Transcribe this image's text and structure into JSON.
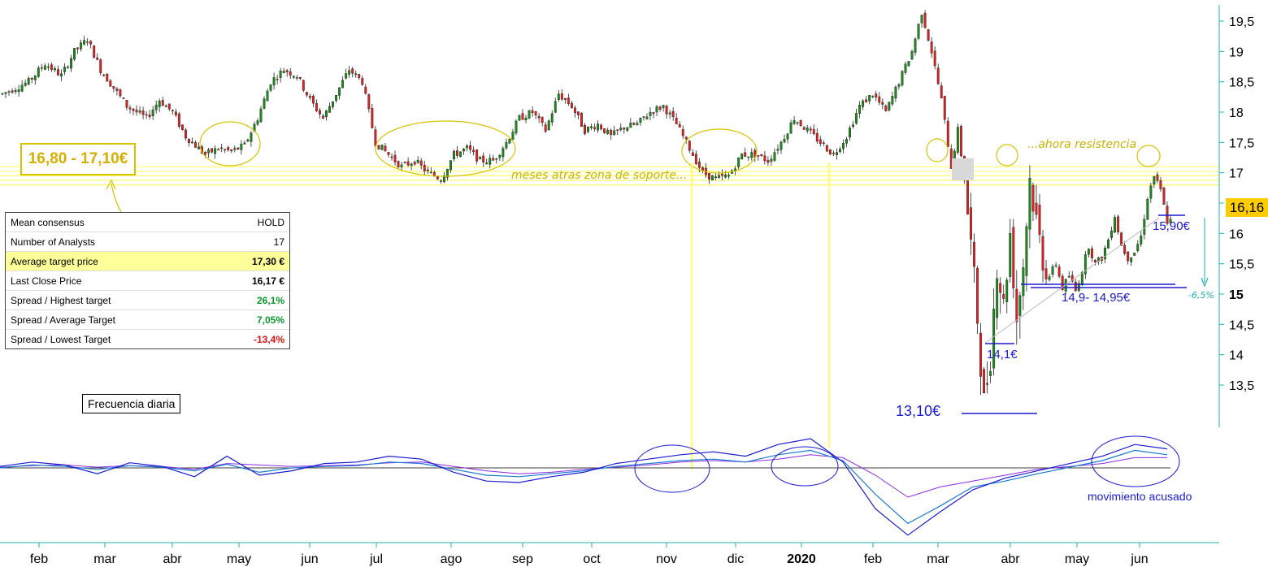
{
  "chart_data": {
    "type": "candlestick",
    "y_ticks": [
      "19,5",
      "19",
      "18,5",
      "18",
      "17,5",
      "17",
      "16,5",
      "16",
      "15,5",
      "15",
      "14,5",
      "14",
      "13,5"
    ],
    "y_tick_values": [
      19.5,
      19,
      18.5,
      18,
      17.5,
      17,
      16.5,
      16,
      15.5,
      15,
      14.5,
      14,
      13.5
    ],
    "y_bold_tick": "15",
    "ylim": [
      12.9,
      19.75
    ],
    "months": [
      "feb",
      "mar",
      "abr",
      "may",
      "jun",
      "jul",
      "ago",
      "sep",
      "oct",
      "nov",
      "dic",
      "2020",
      "feb",
      "mar",
      "abr",
      "may",
      "jun"
    ],
    "current_price": "16,16",
    "current_price_value": 16.16,
    "support_zone": [
      16.8,
      17.1
    ],
    "price_path": [
      [
        0,
        18.3
      ],
      [
        8,
        18.5
      ],
      [
        13,
        18.8
      ],
      [
        18,
        18.6
      ],
      [
        22,
        19.0
      ],
      [
        26,
        19.2
      ],
      [
        30,
        18.7
      ],
      [
        38,
        18.1
      ],
      [
        44,
        17.9
      ],
      [
        48,
        18.2
      ],
      [
        52,
        18.0
      ],
      [
        56,
        17.6
      ],
      [
        62,
        17.3
      ],
      [
        66,
        17.4
      ],
      [
        70,
        17.35
      ],
      [
        74,
        17.45
      ],
      [
        78,
        17.9
      ],
      [
        82,
        18.5
      ],
      [
        86,
        18.7
      ],
      [
        90,
        18.6
      ],
      [
        94,
        18.2
      ],
      [
        98,
        17.9
      ],
      [
        102,
        18.3
      ],
      [
        106,
        18.7
      ],
      [
        110,
        18.5
      ],
      [
        114,
        17.5
      ],
      [
        118,
        17.3
      ],
      [
        122,
        17.1
      ],
      [
        126,
        17.2
      ],
      [
        130,
        17.0
      ],
      [
        134,
        16.9
      ],
      [
        138,
        17.3
      ],
      [
        142,
        17.4
      ],
      [
        146,
        17.2
      ],
      [
        150,
        17.2
      ],
      [
        154,
        17.5
      ],
      [
        158,
        17.9
      ],
      [
        162,
        18.0
      ],
      [
        166,
        17.7
      ],
      [
        170,
        18.3
      ],
      [
        174,
        18.1
      ],
      [
        178,
        17.7
      ],
      [
        182,
        17.8
      ],
      [
        186,
        17.6
      ],
      [
        190,
        17.75
      ],
      [
        194,
        17.8
      ],
      [
        198,
        18.0
      ],
      [
        202,
        18.1
      ],
      [
        206,
        17.8
      ],
      [
        210,
        17.4
      ],
      [
        214,
        17.0
      ],
      [
        218,
        16.9
      ],
      [
        222,
        16.95
      ],
      [
        226,
        17.3
      ],
      [
        230,
        17.3
      ],
      [
        234,
        17.2
      ],
      [
        238,
        17.5
      ],
      [
        242,
        17.9
      ],
      [
        246,
        17.7
      ],
      [
        250,
        17.5
      ],
      [
        254,
        17.3
      ],
      [
        258,
        17.6
      ],
      [
        262,
        18.1
      ],
      [
        266,
        18.3
      ],
      [
        270,
        18.0
      ],
      [
        274,
        18.5
      ],
      [
        278,
        19.0
      ],
      [
        281,
        19.65
      ],
      [
        284,
        19.0
      ],
      [
        287,
        18.2
      ],
      [
        290,
        17.1
      ],
      [
        292,
        17.7
      ],
      [
        294,
        16.9
      ],
      [
        296,
        15.8
      ],
      [
        298,
        14.6
      ],
      [
        300,
        13.2
      ],
      [
        302,
        14.0
      ],
      [
        304,
        15.5
      ],
      [
        306,
        14.8
      ],
      [
        308,
        16.0
      ],
      [
        310,
        14.6
      ],
      [
        312,
        15.5
      ],
      [
        314,
        16.9
      ],
      [
        316,
        16.2
      ],
      [
        318,
        15.6
      ],
      [
        320,
        15.3
      ],
      [
        322,
        15.5
      ],
      [
        324,
        15.1
      ],
      [
        326,
        15.3
      ],
      [
        328,
        15.05
      ],
      [
        330,
        15.4
      ],
      [
        332,
        15.8
      ],
      [
        334,
        15.5
      ],
      [
        336,
        15.6
      ],
      [
        338,
        15.9
      ],
      [
        340,
        16.3
      ],
      [
        342,
        15.8
      ],
      [
        344,
        15.6
      ],
      [
        346,
        15.7
      ],
      [
        348,
        15.95
      ],
      [
        350,
        16.6
      ],
      [
        352,
        16.95
      ],
      [
        354,
        16.7
      ],
      [
        356,
        16.2
      ]
    ],
    "osc_long": [
      0,
      0.2,
      0.1,
      -0.1,
      0.15,
      0.05,
      -0.2,
      0.25,
      -0.3,
      0,
      0.1,
      0.15,
      0.4,
      0.3,
      -0.1,
      -0.5,
      -0.6,
      -0.4,
      -0.2,
      0.1,
      0.3,
      0.5,
      0.6,
      0.4,
      0.9,
      1.2,
      0.5,
      -1.8,
      -3.8,
      -2.6,
      -1.3,
      -0.9,
      -0.4,
      0.05,
      0.5,
      1.2,
      0.9
    ],
    "osc_short": [
      0.1,
      0.4,
      0.2,
      -0.4,
      0.35,
      0.1,
      -0.6,
      0.8,
      -0.5,
      -0.2,
      0.3,
      0.4,
      0.8,
      0.6,
      -0.3,
      -0.9,
      -1.0,
      -0.6,
      -0.3,
      0.3,
      0.6,
      0.9,
      1.1,
      0.8,
      1.6,
      2.0,
      0.4,
      -2.8,
      -4.6,
      -3.0,
      -1.5,
      -0.7,
      -0.2,
      0.3,
      0.8,
      1.6,
      1.3
    ],
    "osc_signal": [
      0.05,
      0.15,
      0.2,
      0.05,
      0.15,
      0.1,
      -0.1,
      0.3,
      0.2,
      0.1,
      0.15,
      0.2,
      0.35,
      0.4,
      0.1,
      -0.2,
      -0.4,
      -0.3,
      -0.1,
      0.05,
      0.2,
      0.4,
      0.5,
      0.4,
      0.6,
      0.9,
      0.7,
      -0.5,
      -2.0,
      -1.3,
      -0.9,
      -0.5,
      -0.1,
      0.1,
      0.3,
      0.7,
      0.7
    ]
  },
  "annotations": {
    "support_text": "meses atras zona de soporte...",
    "resistance_text": "...ahora resistencia",
    "low_label": "13,10€",
    "label_141": "14,1€",
    "label_1590": "15,90€",
    "label_range_149": "14,9- 14,95€",
    "pct_label": "-6,5%",
    "movement_label": "movimiento acusado",
    "range_box": "16,80 - 17,10€",
    "frequency": "Frecuencia diaria"
  },
  "consensus_table": [
    {
      "label": "Mean consensus",
      "value": "HOLD",
      "style": "plain"
    },
    {
      "label": "Number of Analysts",
      "value": "17",
      "style": "plain"
    },
    {
      "label": "Average target price",
      "value": "17,30 €",
      "style": "bold"
    },
    {
      "label": "Last Close Price",
      "value": "16,17 €",
      "style": "bold"
    },
    {
      "label": "Spread / Highest target",
      "value": "26,1%",
      "style": "pos"
    },
    {
      "label": "Spread / Average Target",
      "value": "7,05%",
      "style": "pos"
    },
    {
      "label": "Spread / Lowest Target",
      "value": "-13,4%",
      "style": "neg"
    }
  ],
  "colors": {
    "up": "#1a8a1a",
    "down": "#e02020",
    "support": "#ffff66",
    "annotation_yellow": "#d6c400",
    "blue": "#1a1ad0",
    "axis": "#20b0b0"
  }
}
